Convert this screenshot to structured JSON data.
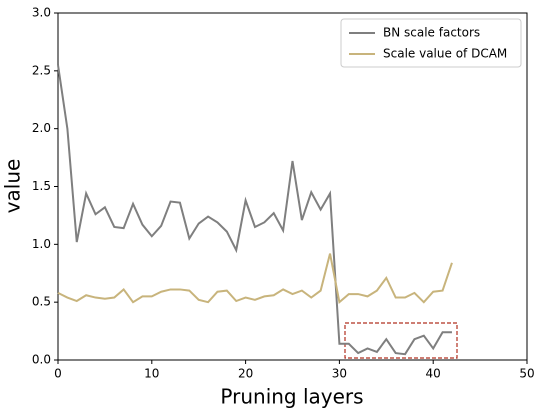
{
  "chart_data": {
    "type": "line",
    "x": [
      0,
      1,
      2,
      3,
      4,
      5,
      6,
      7,
      8,
      9,
      10,
      11,
      12,
      13,
      14,
      15,
      16,
      17,
      18,
      19,
      20,
      21,
      22,
      23,
      24,
      25,
      26,
      27,
      28,
      29,
      30,
      31,
      32,
      33,
      34,
      35,
      36,
      37,
      38,
      39,
      40,
      41,
      42
    ],
    "series": [
      {
        "name": "BN scale factors",
        "color": "#7f7f7f",
        "values": [
          2.55,
          2.0,
          1.02,
          1.44,
          1.26,
          1.32,
          1.15,
          1.14,
          1.35,
          1.17,
          1.07,
          1.16,
          1.37,
          1.36,
          1.05,
          1.18,
          1.24,
          1.19,
          1.11,
          0.95,
          1.38,
          1.15,
          1.19,
          1.27,
          1.12,
          1.72,
          1.21,
          1.45,
          1.3,
          1.44,
          0.14,
          0.14,
          0.06,
          0.1,
          0.07,
          0.18,
          0.06,
          0.05,
          0.18,
          0.21,
          0.1,
          0.24,
          0.24
        ]
      },
      {
        "name": "Scale value of DCAM",
        "color": "#c8b47c",
        "values": [
          0.58,
          0.54,
          0.51,
          0.56,
          0.54,
          0.53,
          0.54,
          0.61,
          0.5,
          0.55,
          0.55,
          0.59,
          0.61,
          0.61,
          0.6,
          0.52,
          0.5,
          0.59,
          0.6,
          0.51,
          0.54,
          0.52,
          0.55,
          0.56,
          0.61,
          0.57,
          0.6,
          0.54,
          0.6,
          0.92,
          0.5,
          0.57,
          0.57,
          0.55,
          0.6,
          0.71,
          0.54,
          0.54,
          0.58,
          0.5,
          0.59,
          0.6,
          0.84
        ]
      }
    ],
    "xlabel": "Pruning layers",
    "ylabel": "value",
    "xlim": [
      0,
      50
    ],
    "xticks": [
      0,
      10,
      20,
      30,
      40,
      50
    ],
    "ylim": [
      0,
      3
    ],
    "yticks": [
      {
        "value": 0,
        "label": "0.0"
      },
      {
        "value": 0.5,
        "label": "0.5"
      },
      {
        "value": 1,
        "label": "1.0"
      },
      {
        "value": 1.5,
        "label": "1.5"
      },
      {
        "value": 2,
        "label": "2.0"
      },
      {
        "value": 2.5,
        "label": "2.5"
      },
      {
        "value": 3,
        "label": "3.0"
      }
    ],
    "legend": "upper right",
    "grid": false
  }
}
